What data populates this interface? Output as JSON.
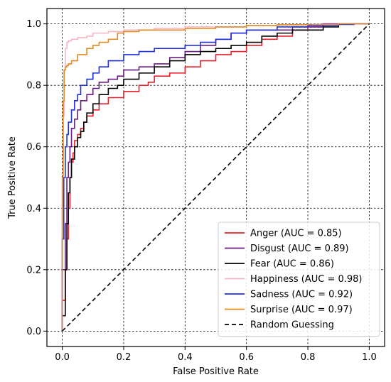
{
  "chart_data": {
    "type": "line",
    "title": "",
    "xlabel": "False Positive Rate",
    "ylabel": "True Positive Rate",
    "xlim": [
      -0.05,
      1.05
    ],
    "ylim": [
      -0.05,
      1.05
    ],
    "xticks": [
      0.0,
      0.2,
      0.4,
      0.6,
      0.8,
      1.0
    ],
    "yticks": [
      0.0,
      0.2,
      0.4,
      0.6,
      0.8,
      1.0
    ],
    "xtick_labels": [
      "0.0",
      "0.2",
      "0.4",
      "0.6",
      "0.8",
      "1.0"
    ],
    "ytick_labels": [
      "0.0",
      "0.2",
      "0.4",
      "0.6",
      "0.8",
      "1.0"
    ],
    "grid": true,
    "legend_position": "lower-right",
    "series": [
      {
        "name": "Anger (AUC = 0.85)",
        "color": "#e8202a",
        "style": "solid",
        "x": [
          0.0,
          0.01,
          0.015,
          0.02,
          0.025,
          0.03,
          0.035,
          0.04,
          0.05,
          0.06,
          0.07,
          0.08,
          0.1,
          0.12,
          0.15,
          0.2,
          0.25,
          0.28,
          0.3,
          0.35,
          0.4,
          0.45,
          0.5,
          0.55,
          0.6,
          0.65,
          0.7,
          0.75,
          0.8,
          0.85,
          1.0
        ],
        "y": [
          0.0,
          0.1,
          0.2,
          0.3,
          0.4,
          0.5,
          0.55,
          0.58,
          0.62,
          0.64,
          0.66,
          0.68,
          0.7,
          0.72,
          0.74,
          0.76,
          0.78,
          0.8,
          0.81,
          0.83,
          0.84,
          0.86,
          0.88,
          0.9,
          0.91,
          0.93,
          0.95,
          0.96,
          0.98,
          0.99,
          1.0
        ]
      },
      {
        "name": "Disgust (AUC = 0.89)",
        "color": "#6a1b82",
        "style": "solid",
        "x": [
          0.0,
          0.01,
          0.015,
          0.02,
          0.025,
          0.03,
          0.04,
          0.05,
          0.06,
          0.08,
          0.1,
          0.12,
          0.15,
          0.18,
          0.2,
          0.25,
          0.3,
          0.35,
          0.4,
          0.45,
          0.5,
          0.55,
          0.6,
          0.65,
          0.7,
          0.75,
          0.8,
          0.85,
          1.0
        ],
        "y": [
          0.0,
          0.2,
          0.35,
          0.5,
          0.55,
          0.6,
          0.66,
          0.69,
          0.72,
          0.75,
          0.77,
          0.79,
          0.81,
          0.82,
          0.83,
          0.85,
          0.86,
          0.87,
          0.89,
          0.91,
          0.93,
          0.95,
          0.97,
          0.98,
          0.98,
          0.98,
          0.99,
          0.99,
          1.0
        ]
      },
      {
        "name": "Fear (AUC = 0.86)",
        "color": "#000000",
        "style": "solid",
        "x": [
          0.0,
          0.01,
          0.015,
          0.02,
          0.025,
          0.03,
          0.04,
          0.05,
          0.06,
          0.07,
          0.08,
          0.1,
          0.12,
          0.15,
          0.18,
          0.2,
          0.25,
          0.3,
          0.35,
          0.4,
          0.45,
          0.5,
          0.55,
          0.6,
          0.65,
          0.7,
          0.75,
          0.8,
          0.85,
          0.9,
          1.0
        ],
        "y": [
          0.0,
          0.05,
          0.2,
          0.35,
          0.45,
          0.5,
          0.56,
          0.6,
          0.63,
          0.65,
          0.68,
          0.71,
          0.74,
          0.77,
          0.79,
          0.8,
          0.82,
          0.84,
          0.86,
          0.88,
          0.9,
          0.91,
          0.92,
          0.93,
          0.94,
          0.96,
          0.97,
          0.98,
          0.98,
          0.99,
          1.0
        ]
      },
      {
        "name": "Happiness (AUC = 0.98)",
        "color": "#f4b6c2",
        "style": "solid",
        "x": [
          0.0,
          0.003,
          0.006,
          0.01,
          0.015,
          0.02,
          0.03,
          0.05,
          0.08,
          0.1,
          0.15,
          0.2,
          0.3,
          0.4,
          0.5,
          0.6,
          0.7,
          0.8,
          0.9,
          1.0
        ],
        "y": [
          0.0,
          0.4,
          0.7,
          0.85,
          0.92,
          0.94,
          0.945,
          0.95,
          0.955,
          0.96,
          0.97,
          0.975,
          0.98,
          0.985,
          0.99,
          0.99,
          0.995,
          0.997,
          0.998,
          1.0
        ]
      },
      {
        "name": "Sadness (AUC = 0.92)",
        "color": "#1f2ee0",
        "style": "solid",
        "x": [
          0.0,
          0.005,
          0.01,
          0.015,
          0.02,
          0.03,
          0.04,
          0.05,
          0.06,
          0.08,
          0.1,
          0.12,
          0.15,
          0.2,
          0.25,
          0.3,
          0.35,
          0.4,
          0.45,
          0.5,
          0.55,
          0.6,
          0.7,
          0.8,
          0.9,
          0.95,
          1.0
        ],
        "y": [
          0.0,
          0.3,
          0.5,
          0.6,
          0.64,
          0.68,
          0.72,
          0.75,
          0.77,
          0.8,
          0.82,
          0.84,
          0.86,
          0.88,
          0.9,
          0.91,
          0.92,
          0.92,
          0.93,
          0.94,
          0.95,
          0.97,
          0.98,
          0.99,
          0.995,
          0.998,
          1.0
        ]
      },
      {
        "name": "Surprise (AUC = 0.97)",
        "color": "#e28a25",
        "style": "solid",
        "x": [
          0.0,
          0.003,
          0.006,
          0.01,
          0.015,
          0.02,
          0.03,
          0.05,
          0.08,
          0.1,
          0.12,
          0.15,
          0.18,
          0.2,
          0.25,
          0.3,
          0.35,
          0.4,
          0.5,
          0.6,
          0.7,
          0.8,
          0.9,
          1.0
        ],
        "y": [
          0.0,
          0.5,
          0.75,
          0.85,
          0.86,
          0.865,
          0.87,
          0.88,
          0.9,
          0.92,
          0.93,
          0.94,
          0.95,
          0.97,
          0.975,
          0.98,
          0.98,
          0.98,
          0.985,
          0.99,
          0.995,
          0.997,
          0.998,
          1.0
        ]
      },
      {
        "name": "Random Guessing",
        "color": "#000000",
        "style": "dashed",
        "x": [
          0.0,
          1.0
        ],
        "y": [
          0.0,
          1.0
        ]
      }
    ]
  }
}
